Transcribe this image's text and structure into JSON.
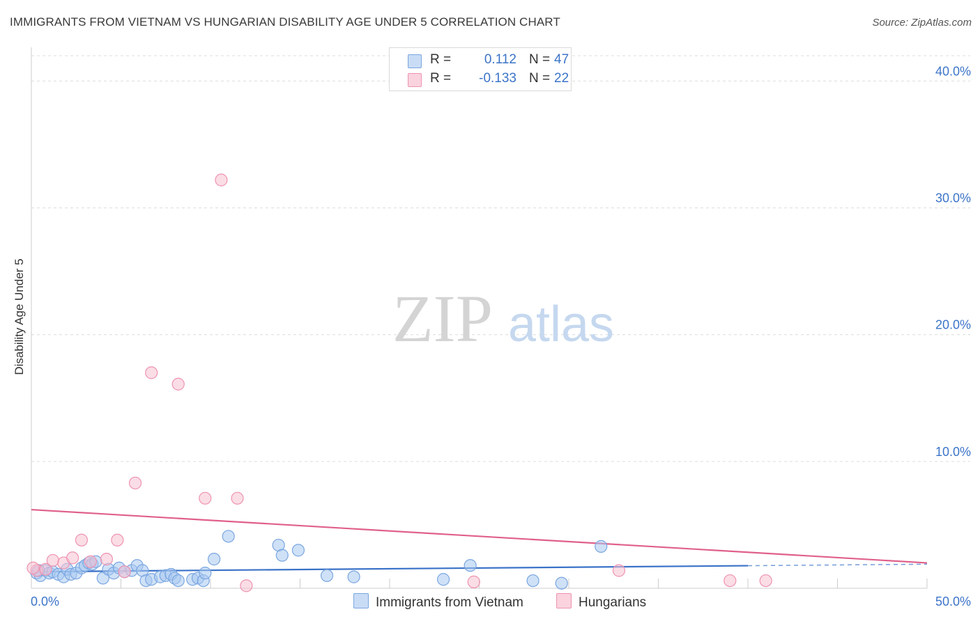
{
  "title": "IMMIGRANTS FROM VIETNAM VS HUNGARIAN DISABILITY AGE UNDER 5 CORRELATION CHART",
  "source": "Source: ZipAtlas.com",
  "watermark": {
    "part1": "ZIP",
    "part2": "atlas"
  },
  "legend": {
    "rows": [
      {
        "r_label": "R =",
        "r_value": "0.112",
        "n_label": "N =",
        "n_value": "47",
        "color": "#a8c8f0",
        "border": "#7aa6e0"
      },
      {
        "r_label": "R =",
        "r_value": "-0.133",
        "n_label": "N =",
        "n_value": "22",
        "color": "#f7c1d1",
        "border": "#ee93b0"
      }
    ]
  },
  "bottom_legend": [
    {
      "label": "Immigrants from Vietnam",
      "color": "#a8c8f0",
      "border": "#7aa6e0"
    },
    {
      "label": "Hungarians",
      "color": "#f7c1d1",
      "border": "#ee93b0"
    }
  ],
  "chart_data": {
    "type": "scatter",
    "title": "IMMIGRANTS FROM VIETNAM VS HUNGARIAN DISABILITY AGE UNDER 5 CORRELATION CHART",
    "xlabel": "",
    "ylabel": "Disability Age Under 5",
    "xlim": [
      0,
      50
    ],
    "ylim": [
      0,
      42
    ],
    "x_tick_labels": [
      "0.0%",
      "50.0%"
    ],
    "y_ticks": [
      10,
      20,
      30,
      40
    ],
    "y_tick_labels": [
      "10.0%",
      "20.0%",
      "30.0%",
      "40.0%"
    ],
    "grid": true,
    "series": [
      {
        "name": "Immigrants from Vietnam",
        "color": "#7aa6e0",
        "fill": "#a8c8f0",
        "trend_color": "#3a72c8",
        "trend": {
          "x0": 0,
          "y0": 1.3,
          "x1": 50,
          "y1": 1.9,
          "solid_until": 40
        },
        "points": [
          [
            0.3,
            1.2
          ],
          [
            0.5,
            1.0
          ],
          [
            0.8,
            1.4
          ],
          [
            1.0,
            1.2
          ],
          [
            1.2,
            1.3
          ],
          [
            1.5,
            1.1
          ],
          [
            1.8,
            0.9
          ],
          [
            2.0,
            1.5
          ],
          [
            2.2,
            1.1
          ],
          [
            2.5,
            1.2
          ],
          [
            2.8,
            1.6
          ],
          [
            3.0,
            1.8
          ],
          [
            3.2,
            2.0
          ],
          [
            3.4,
            1.9
          ],
          [
            3.6,
            2.1
          ],
          [
            4.0,
            0.8
          ],
          [
            4.3,
            1.5
          ],
          [
            4.6,
            1.2
          ],
          [
            4.9,
            1.6
          ],
          [
            5.2,
            1.3
          ],
          [
            5.6,
            1.4
          ],
          [
            5.9,
            1.8
          ],
          [
            6.2,
            1.4
          ],
          [
            6.4,
            0.6
          ],
          [
            6.7,
            0.7
          ],
          [
            7.2,
            0.9
          ],
          [
            7.5,
            1.0
          ],
          [
            7.8,
            1.1
          ],
          [
            8.0,
            0.8
          ],
          [
            8.2,
            0.6
          ],
          [
            9.0,
            0.7
          ],
          [
            9.3,
            0.8
          ],
          [
            9.6,
            0.6
          ],
          [
            9.7,
            1.2
          ],
          [
            10.2,
            2.3
          ],
          [
            11.0,
            4.1
          ],
          [
            13.8,
            3.4
          ],
          [
            14.0,
            2.6
          ],
          [
            14.9,
            3.0
          ],
          [
            16.5,
            1.0
          ],
          [
            18.0,
            0.9
          ],
          [
            23.0,
            0.7
          ],
          [
            24.5,
            1.8
          ],
          [
            28.0,
            0.6
          ],
          [
            29.6,
            0.4
          ],
          [
            31.8,
            3.3
          ],
          [
            0.4,
            1.4
          ]
        ]
      },
      {
        "name": "Hungarians",
        "color": "#ee93b0",
        "fill": "#f7c1d1",
        "trend_color": "#e0608a",
        "trend": {
          "x0": 0,
          "y0": 6.2,
          "x1": 50,
          "y1": 2.0,
          "solid_until": 50
        },
        "points": [
          [
            0.3,
            1.4
          ],
          [
            0.8,
            1.5
          ],
          [
            1.2,
            2.2
          ],
          [
            1.8,
            2.0
          ],
          [
            2.3,
            2.4
          ],
          [
            2.8,
            3.8
          ],
          [
            3.3,
            2.1
          ],
          [
            4.2,
            2.3
          ],
          [
            4.8,
            3.8
          ],
          [
            5.2,
            1.3
          ],
          [
            5.8,
            8.3
          ],
          [
            6.7,
            17.0
          ],
          [
            8.2,
            16.1
          ],
          [
            9.7,
            7.1
          ],
          [
            10.6,
            32.2
          ],
          [
            11.5,
            7.1
          ],
          [
            12.0,
            0.2
          ],
          [
            24.7,
            0.5
          ],
          [
            32.8,
            1.4
          ],
          [
            39.0,
            0.6
          ],
          [
            41.0,
            0.6
          ],
          [
            0.1,
            1.6
          ]
        ]
      }
    ]
  }
}
